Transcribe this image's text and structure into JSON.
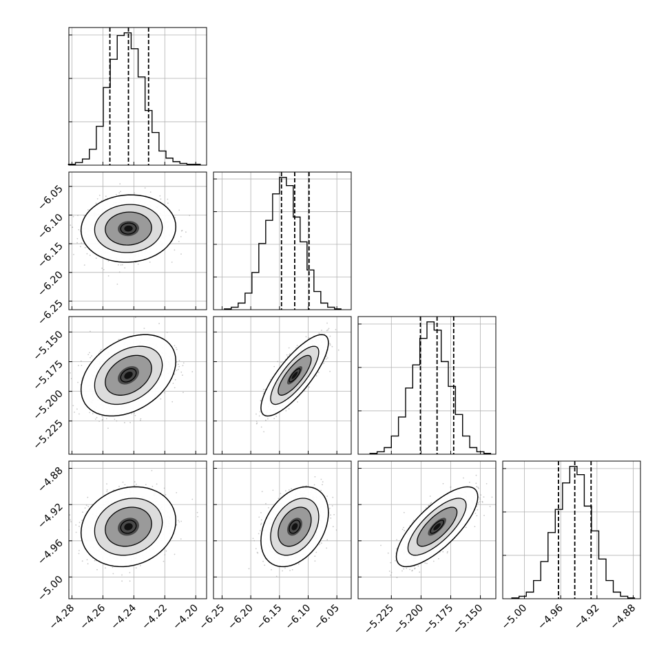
{
  "figure": {
    "type": "corner-plot",
    "parameters": 4
  },
  "chart_data": {
    "type": "corner",
    "parameters": [
      {
        "range": [
          -4.282,
          -4.193
        ],
        "ticks": [
          -4.28,
          -4.26,
          -4.24,
          -4.22,
          -4.2
        ],
        "tick_labels": [
          "−4.28",
          "−4.26",
          "−4.24",
          "−4.22",
          "−4.20"
        ],
        "quantiles": [
          -4.2555,
          -4.2435,
          -4.2305
        ],
        "hist_x": [
          -4.28,
          -4.2755,
          -4.271,
          -4.2665,
          -4.262,
          -4.2575,
          -4.253,
          -4.2485,
          -4.244,
          -4.2395,
          -4.235,
          -4.2305,
          -4.226,
          -4.2215,
          -4.217,
          -4.2125,
          -4.208,
          -4.2035,
          -4.199
        ],
        "hist_counts": [
          1,
          3,
          7,
          18,
          44,
          88,
          120,
          147,
          150,
          132,
          100,
          62,
          37,
          16,
          8,
          4,
          2,
          1,
          1
        ],
        "hist_ticks": 3
      },
      {
        "range": [
          -6.265,
          -6.025
        ],
        "ticks": [
          -6.25,
          -6.2,
          -6.15,
          -6.1,
          -6.05
        ],
        "tick_labels": [
          "−6.25",
          "−6.20",
          "−6.15",
          "−6.10",
          "−6.05"
        ],
        "quantiles": [
          -6.1465,
          -6.1235,
          -6.0985
        ],
        "hist_x": [
          -6.24,
          -6.228,
          -6.216,
          -6.204,
          -6.192,
          -6.18,
          -6.168,
          -6.156,
          -6.144,
          -6.132,
          -6.12,
          -6.108,
          -6.096,
          -6.084,
          -6.072,
          -6.06,
          -6.048
        ],
        "hist_counts": [
          1,
          3,
          8,
          20,
          45,
          80,
          108,
          140,
          160,
          150,
          112,
          82,
          48,
          22,
          8,
          3,
          1
        ],
        "hist_ticks": 4
      },
      {
        "range": [
          -5.253,
          -5.137
        ],
        "ticks": [
          -5.225,
          -5.2,
          -5.175,
          -5.15
        ],
        "tick_labels": [
          "−5.225",
          "−5.200",
          "−5.175",
          "−5.150"
        ],
        "quantiles": [
          -5.2005,
          -5.1865,
          -5.1725
        ],
        "hist_x": [
          -5.24,
          -5.234,
          -5.228,
          -5.222,
          -5.216,
          -5.21,
          -5.204,
          -5.198,
          -5.192,
          -5.186,
          -5.18,
          -5.174,
          -5.168,
          -5.162,
          -5.156,
          -5.15,
          -5.144
        ],
        "hist_counts": [
          1,
          3,
          8,
          22,
          45,
          80,
          108,
          140,
          160,
          150,
          112,
          82,
          48,
          22,
          8,
          3,
          1
        ],
        "hist_ticks": 3
      },
      {
        "range": [
          -5.024,
          -4.872
        ],
        "ticks": [
          -5.0,
          -4.96,
          -4.92,
          -4.88
        ],
        "tick_labels": [
          "−5.00",
          "−4.96",
          "−4.92",
          "−4.88"
        ],
        "quantiles": [
          -4.9625,
          -4.9445,
          -4.9265
        ],
        "hist_x": [
          -5.01,
          -5.002,
          -4.994,
          -4.986,
          -4.978,
          -4.97,
          -4.962,
          -4.954,
          -4.946,
          -4.938,
          -4.93,
          -4.922,
          -4.914,
          -4.906,
          -4.898,
          -4.89,
          -4.882
        ],
        "hist_counts": [
          1,
          3,
          8,
          22,
          45,
          80,
          108,
          140,
          160,
          150,
          112,
          82,
          48,
          22,
          8,
          3,
          1
        ],
        "hist_ticks": 3
      }
    ],
    "correlations": {
      "1,0": 0.05,
      "2,0": 0.35,
      "2,1": 0.8,
      "3,0": 0.15,
      "3,1": 0.35,
      "3,2": 0.75
    },
    "contour_levels": 3,
    "grid": true,
    "tick_direction": "in",
    "tick_label_rotation": -45
  }
}
